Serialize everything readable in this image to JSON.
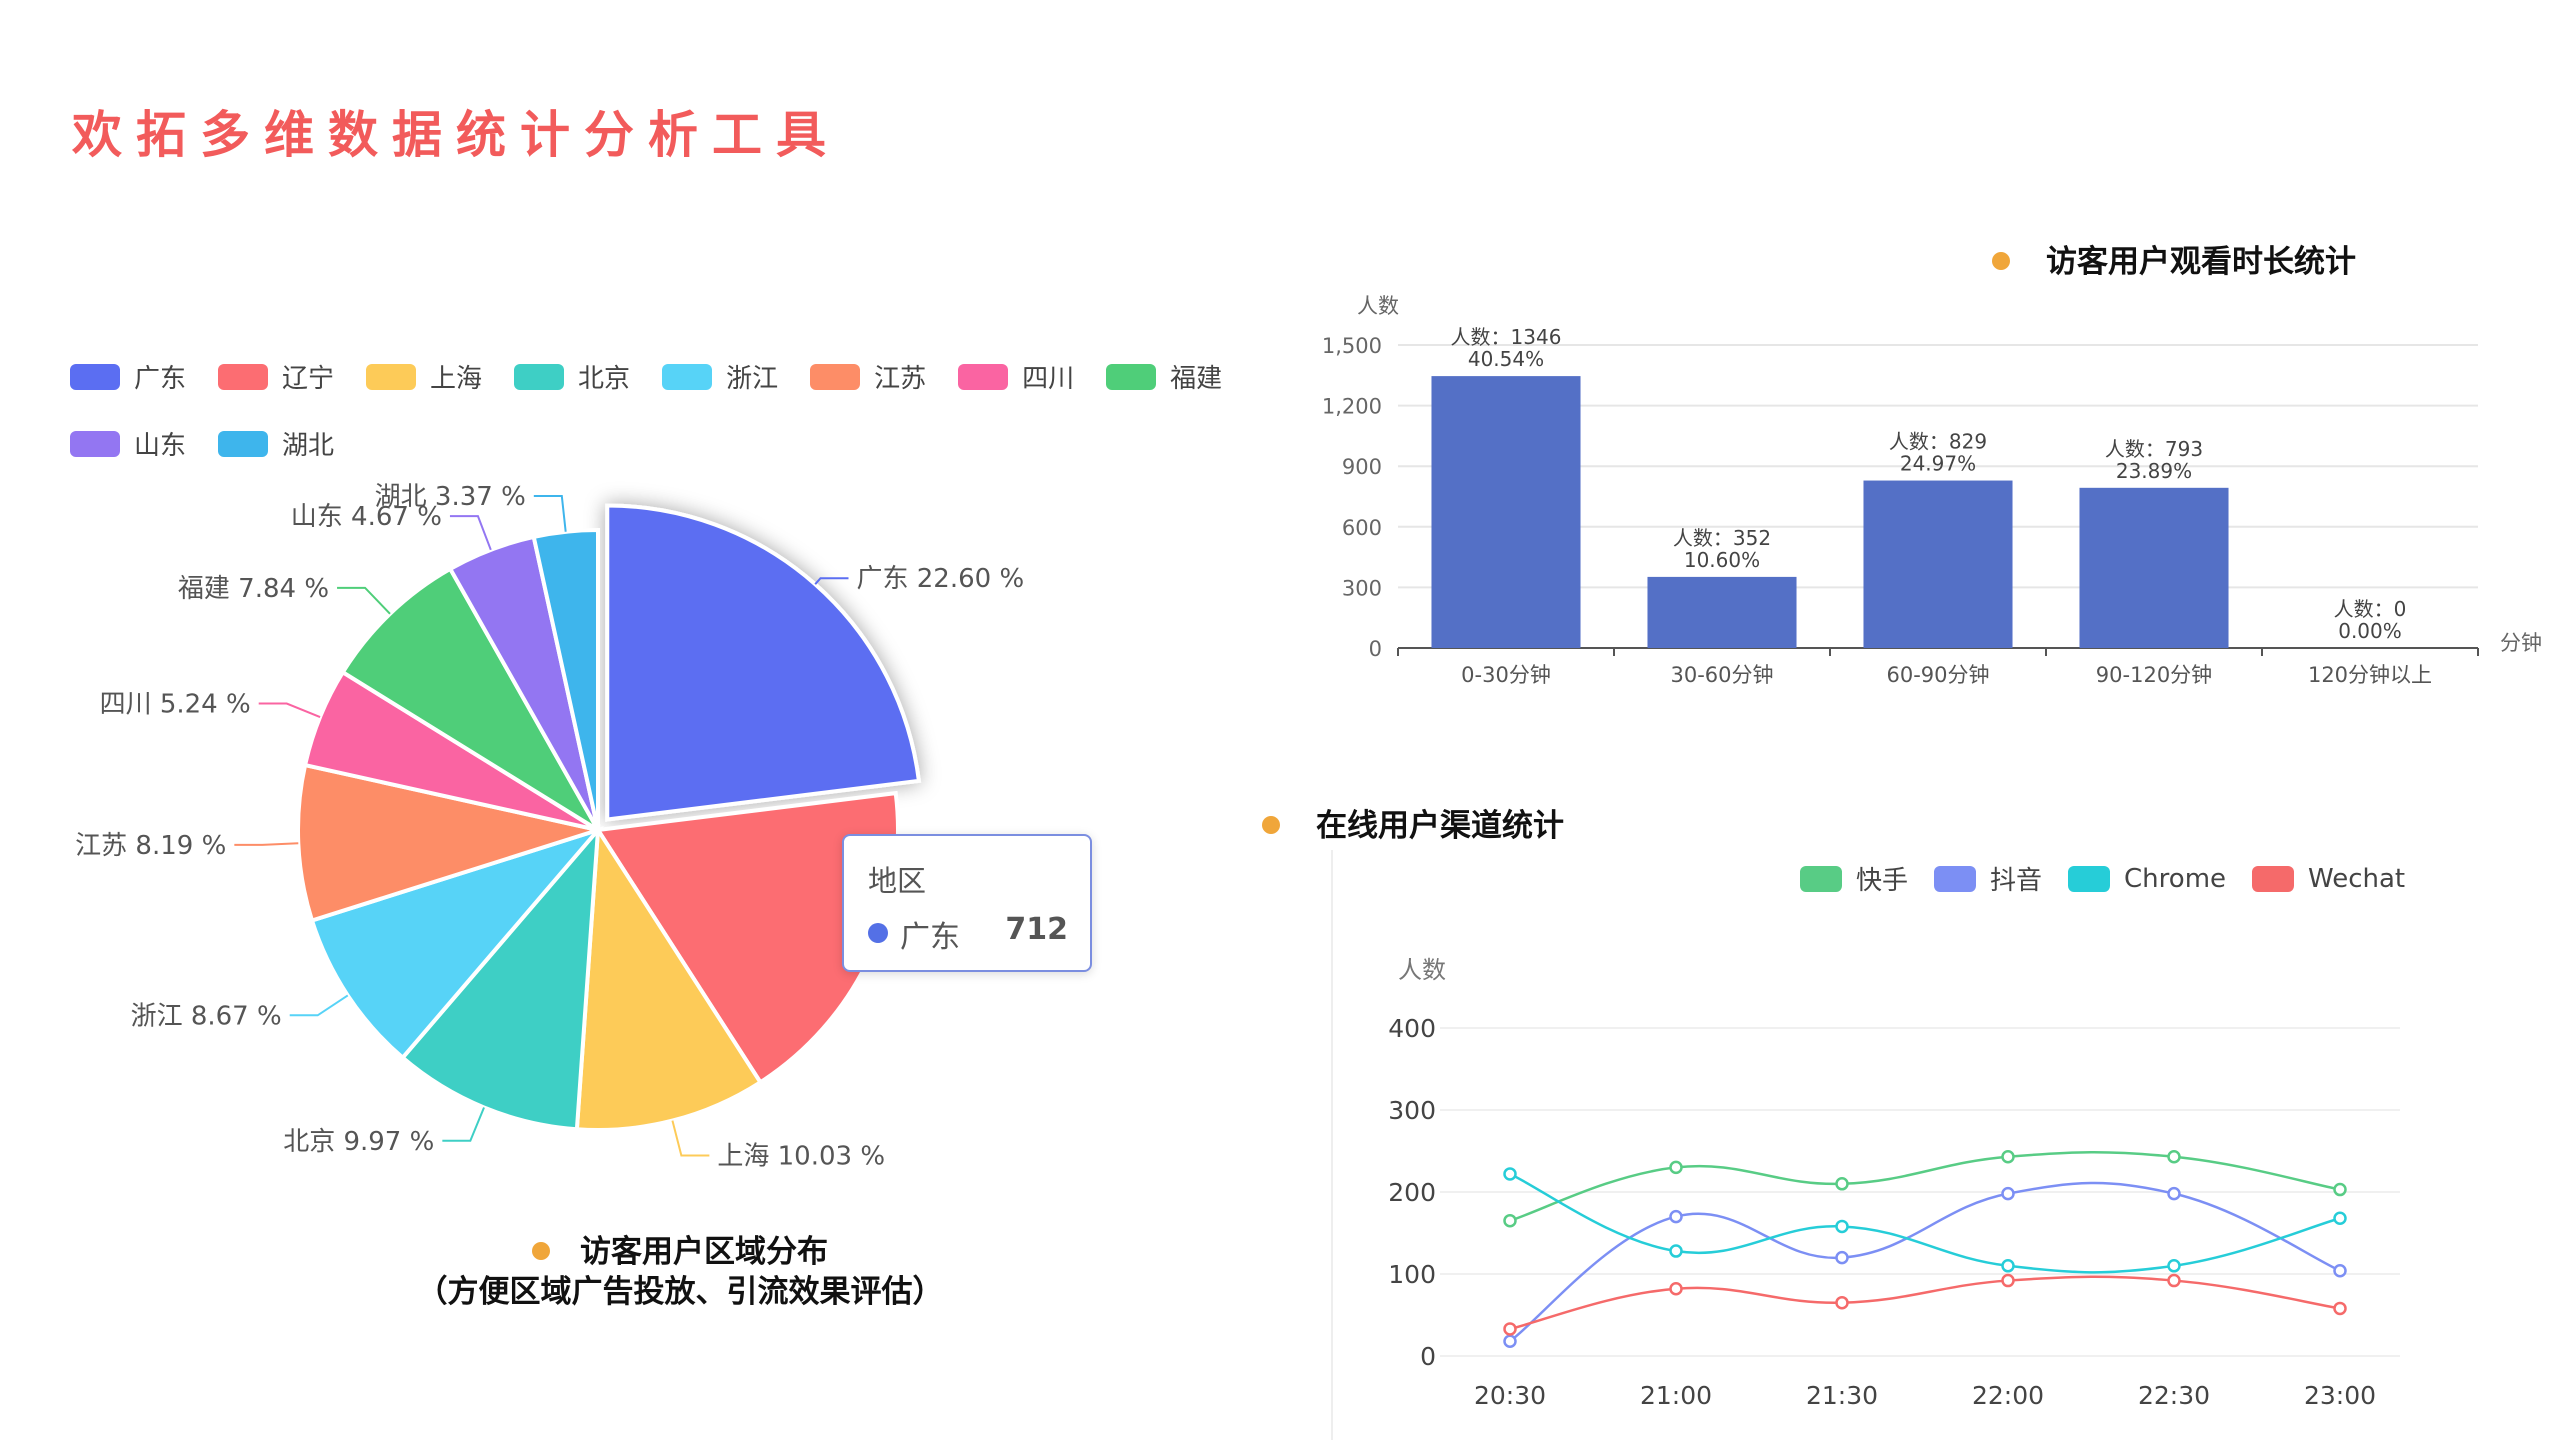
{
  "page": {
    "title": "欢拓多维数据统计分析工具"
  },
  "bar_section": {
    "title": "访客用户观看时长统计"
  },
  "line_section": {
    "title": "在线用户渠道统计"
  },
  "pie_section": {
    "title": "访客用户区域分布",
    "subtitle": "（方便区域广告投放、引流效果评估）"
  },
  "tooltip": {
    "title": "地区",
    "name": "广东",
    "value": "712",
    "color": "#5470e6"
  },
  "chart_data": [
    {
      "type": "pie",
      "title": "访客用户区域分布",
      "legend_position": "top-left",
      "label_format": "{name} {value} %",
      "slices": [
        {
          "name": "广东",
          "value": 22.6,
          "color": "#5b6ef2",
          "label": "广东 22.60 %"
        },
        {
          "name": "辽宁",
          "value": 17.52,
          "color": "#fc6d72",
          "label": ""
        },
        {
          "name": "上海",
          "value": 10.03,
          "color": "#fdcb58",
          "label": "上海 10.03 %"
        },
        {
          "name": "北京",
          "value": 9.97,
          "color": "#3ecfc5",
          "label": "北京 9.97 %"
        },
        {
          "name": "浙江",
          "value": 8.67,
          "color": "#57d3f7",
          "label": "浙江 8.67 %"
        },
        {
          "name": "江苏",
          "value": 8.19,
          "color": "#fd8d67",
          "label": "江苏 8.19 %"
        },
        {
          "name": "四川",
          "value": 5.24,
          "color": "#fa64a2",
          "label": "四川 5.24 %"
        },
        {
          "name": "福建",
          "value": 7.84,
          "color": "#4fce79",
          "label": "福建 7.84 %"
        },
        {
          "name": "山东",
          "value": 4.67,
          "color": "#9376f2",
          "label": "山东 4.67 %"
        },
        {
          "name": "湖北",
          "value": 3.37,
          "color": "#3eb5ec",
          "label": "湖北 3.37 %"
        }
      ]
    },
    {
      "type": "bar",
      "title": "访客用户观看时长统计",
      "categories": [
        "0-30分钟",
        "30-60分钟",
        "60-90分钟",
        "90-120分钟",
        "120分钟以上"
      ],
      "values": [
        1346,
        352,
        829,
        793,
        0
      ],
      "value_labels": [
        "人数：1346",
        "人数：352",
        "人数：829",
        "人数：793",
        "人数：0"
      ],
      "percent_labels": [
        "40.54%",
        "10.60%",
        "24.97%",
        "23.89%",
        "0.00%"
      ],
      "ylabel": "人数",
      "xlabel": "分钟",
      "ylim": [
        0,
        1500
      ],
      "yticks": [
        "0",
        "300",
        "600",
        "900",
        "1,200",
        "1,500"
      ],
      "color": "#5470c6"
    },
    {
      "type": "line",
      "title": "在线用户渠道统计",
      "categories": [
        "20:30",
        "21:00",
        "21:30",
        "22:00",
        "22:30",
        "23:00"
      ],
      "ylabel": "人数",
      "ylim": [
        0,
        400
      ],
      "yticks": [
        "0",
        "100",
        "200",
        "300",
        "400"
      ],
      "legend_position": "top-right",
      "series": [
        {
          "name": "快手",
          "color": "#58cc85",
          "values": [
            165,
            230,
            210,
            243,
            243,
            203
          ]
        },
        {
          "name": "抖音",
          "color": "#7c8ff4",
          "values": [
            18,
            170,
            120,
            198,
            198,
            104
          ]
        },
        {
          "name": "Chrome",
          "color": "#26cdd8",
          "values": [
            222,
            128,
            158,
            110,
            110,
            168
          ]
        },
        {
          "name": "Wechat",
          "color": "#f56a6a",
          "values": [
            33,
            82,
            65,
            92,
            92,
            58
          ]
        }
      ]
    }
  ]
}
